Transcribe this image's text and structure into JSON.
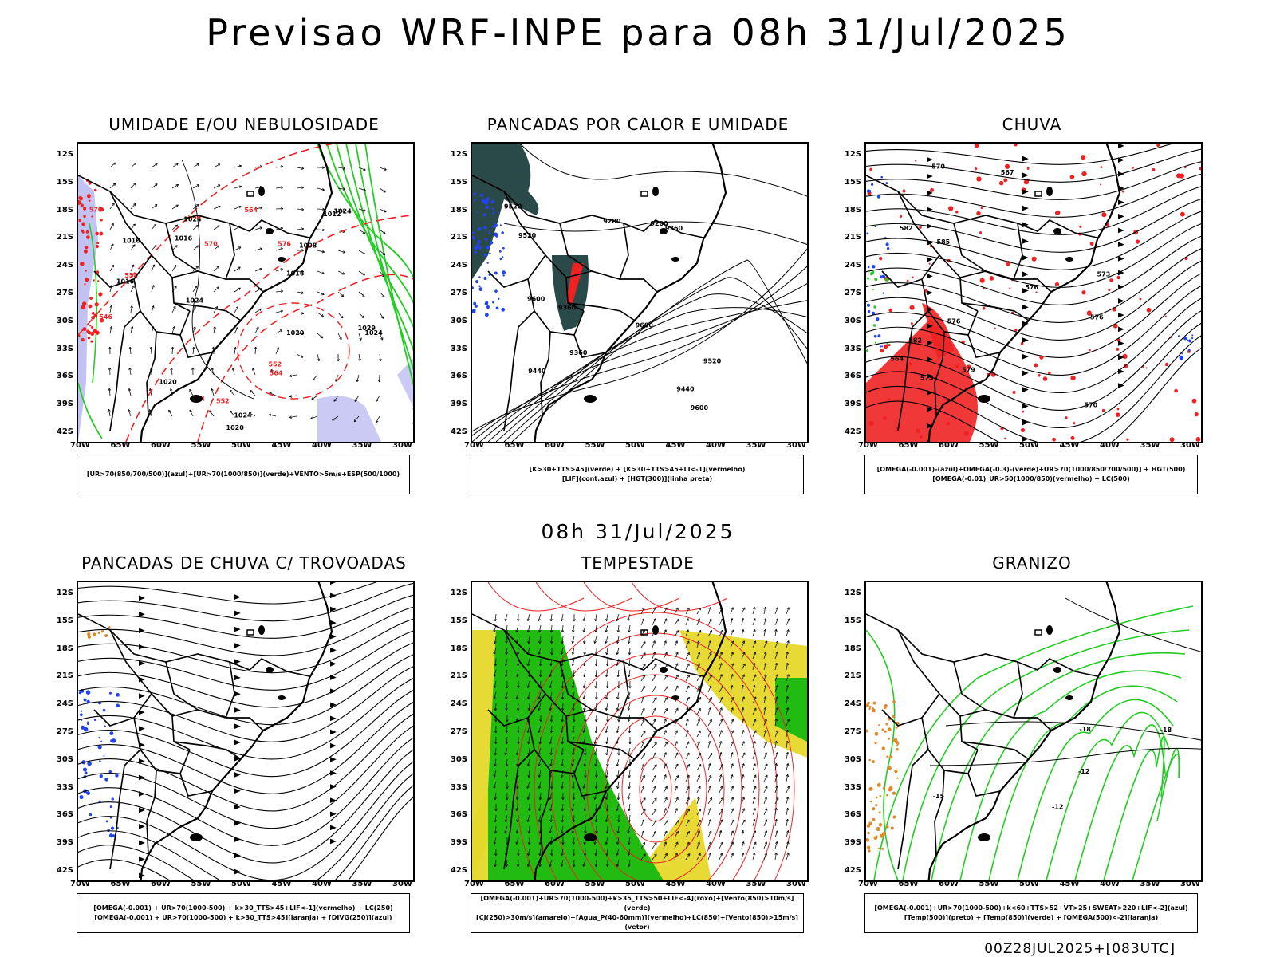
{
  "main_title": "Previsao WRF-INPE  para 08h 31/Jul/2025",
  "mid_title": "08h 31/Jul/2025",
  "footer": "00Z28JUL2025+[083UTC]",
  "lat_labels": [
    "12S",
    "15S",
    "18S",
    "21S",
    "24S",
    "27S",
    "30S",
    "33S",
    "36S",
    "39S",
    "42S"
  ],
  "lon_labels": [
    "70W",
    "65W",
    "60W",
    "55W",
    "50W",
    "45W",
    "40W",
    "35W",
    "30W"
  ],
  "panels": [
    {
      "title": "UMIDADE E/OU NEBULOSIDADE",
      "legend": [
        "[UR>70(850/700/500)](azul)+[UR>70(1000/850)](verde)+VENTO>5m/s+ESP(500/1000)"
      ],
      "contour_labels": [
        "1016",
        "1016",
        "1016",
        "1024",
        "1012",
        "1020",
        "1020",
        "1024",
        "1024",
        "1024",
        "1029",
        "1024",
        "1008",
        "1020",
        "1016"
      ],
      "red_labels": [
        "570",
        "564",
        "570",
        "576",
        "564",
        "558",
        "552",
        "564",
        "558",
        "546",
        "552"
      ]
    },
    {
      "title": "PANCADAS POR CALOR E UMIDADE",
      "legend": [
        "[K>30+TTS>45](verde) + [K>30+TTS>45+LI<-1](vermelho)",
        "[LIF](cont.azul) + [HGT(300)](linha preta)"
      ],
      "contour_labels": [
        "9600",
        "9600",
        "9600",
        "9520",
        "9520",
        "9520",
        "9440",
        "9360",
        "9360",
        "9280",
        "9200",
        "9440",
        "9360"
      ],
      "red_labels": []
    },
    {
      "title": "CHUVA",
      "legend": [
        "[OMEGA(-0.001)-(azul)+OMEGA(-0.3)-(verde)+UR>70(1000/850/700/500)] + HGT(500)",
        "[OMEGA(-0.01)_UR>50(1000/850)(vermelho) + LC(500)"
      ],
      "contour_labels": [
        "585",
        "582",
        "582",
        "579",
        "576",
        "573",
        "570",
        "576",
        "573",
        "570",
        "567",
        "564",
        "576"
      ],
      "red_labels": []
    },
    {
      "title": "PANCADAS DE CHUVA C/ TROVOADAS",
      "legend": [
        "[OMEGA(-0.001) + UR>70(1000-500) + k>30_TTS>45+LIF<-1](vermelho) + LC(250)",
        "[OMEGA(-0.001) + UR>70(1000-500) + k>30_TTS>45](laranja) + [DIVG(250)](azul)"
      ],
      "contour_labels": [],
      "red_labels": []
    },
    {
      "title": "TEMPESTADE",
      "legend": [
        "[OMEGA(-0.001)+UR>70(1000-500)+k>35_TTS>50+LIF<-4](roxo)+[Vento(850)>10m/s](verde)",
        "[CJ(250)>30m/s](amarelo)+[Agua_P(40-60mm)](vermelho)+LC(850)+[Vento(850)>15m/s](vetor)"
      ],
      "contour_labels": [],
      "red_labels": []
    },
    {
      "title": "GRANIZO",
      "legend": [
        "[OMEGA(-0.001)+UR>70(1000-500)+k<60+TTS>52+VT>25+SWEAT>220+LIF<-2](azul)",
        "[Temp(500)](preto) + [Temp(850)](verde) + [OMEGA(500)<-2](laranja)"
      ],
      "contour_labels": [
        "-12",
        "-15",
        "-12",
        "-18",
        "-18"
      ],
      "red_labels": []
    }
  ],
  "colors": {
    "border": "#000000",
    "humid_blue": "#b3b3f0",
    "humid_green": "#22cc22",
    "red": "#ee2222",
    "dark_teal": "#2a4a4a",
    "blue": "#2244ee",
    "green_fill": "#22bb11",
    "yellow_fill": "#e6d82a",
    "orange": "#e08a2a"
  }
}
